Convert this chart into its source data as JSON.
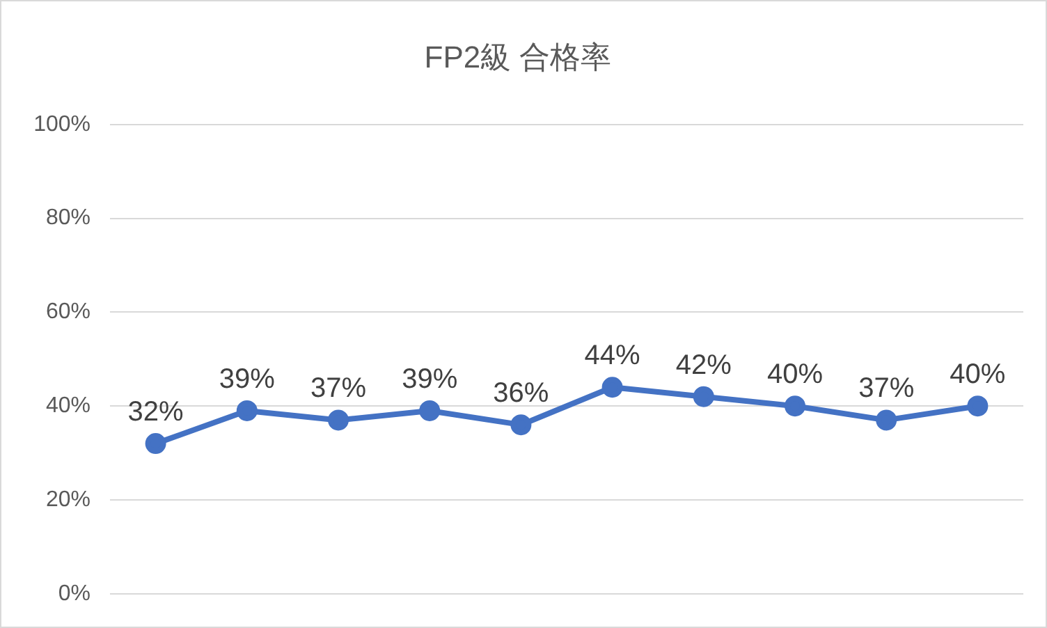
{
  "chart_data": {
    "type": "line",
    "title": "FP2級 合格率",
    "categories": [
      null,
      null,
      null,
      null,
      null,
      null,
      null,
      null,
      null,
      null
    ],
    "series": [
      {
        "color": "#4472c4",
        "values": [
          32,
          39,
          37,
          39,
          36,
          44,
          42,
          40,
          37,
          40
        ],
        "value_labels": [
          "32%",
          "39%",
          "37%",
          "39%",
          "36%",
          "44%",
          "42%",
          "40%",
          "37%",
          "40%"
        ]
      }
    ],
    "ylim": [
      0,
      100
    ],
    "yticks": [
      {
        "value": 0,
        "label": "0%"
      },
      {
        "value": 20,
        "label": "20%"
      },
      {
        "value": 40,
        "label": "40%"
      },
      {
        "value": 60,
        "label": "60%"
      },
      {
        "value": 80,
        "label": "80%"
      },
      {
        "value": 100,
        "label": "100%"
      }
    ],
    "grid": "y",
    "legend": false,
    "marker": "circle",
    "line_style": "solid",
    "tick_labels": "y"
  }
}
